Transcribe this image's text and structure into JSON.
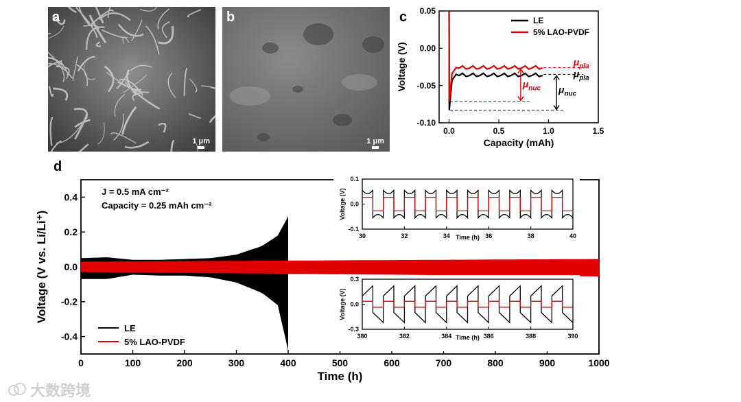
{
  "panels": {
    "a": {
      "label": "a",
      "scale": "1 μm"
    },
    "b": {
      "label": "b",
      "scale": "1 μm"
    },
    "c": {
      "label": "c"
    },
    "d": {
      "label": "d"
    }
  },
  "watermark": {
    "text": "大数跨境",
    "icon": "cloud-logo-icon"
  },
  "colors": {
    "le": "#000000",
    "lao": "#e00000"
  },
  "chart_data": [
    {
      "id": "c",
      "type": "line",
      "xlabel": "Capacity (mAh)",
      "ylabel": "Voltage (V)",
      "xlim": [
        -0.1,
        1.5
      ],
      "ylim": [
        -0.1,
        0.05
      ],
      "xticks": [
        0.0,
        0.5,
        1.0,
        1.5
      ],
      "xtick_labels": [
        "0.0",
        "0.5",
        "1.0",
        "1.5"
      ],
      "yticks": [
        -0.1,
        -0.05,
        0.0,
        0.05
      ],
      "ytick_labels": [
        "-0.10",
        "-0.05",
        "0.00",
        "0.05"
      ],
      "legend": [
        "LE",
        "5% LAO-PVDF"
      ],
      "legend_position": "top-right",
      "series": [
        {
          "name": "LE",
          "nucleation_min": -0.083,
          "plateau": -0.035,
          "x_end": 0.95
        },
        {
          "name": "5% LAO-PVDF",
          "nucleation_min": -0.071,
          "plateau": -0.026,
          "x_end": 0.95
        }
      ],
      "annotations": [
        {
          "main": "μ",
          "sub": "pla",
          "color": "#e00000"
        },
        {
          "main": "μ",
          "sub": "pla",
          "color": "#000000"
        },
        {
          "main": "μ",
          "sub": "nuc",
          "color": "#e00000"
        },
        {
          "main": "μ",
          "sub": "nuc",
          "color": "#000000"
        }
      ]
    },
    {
      "id": "d",
      "type": "line",
      "xlabel": "Time (h)",
      "ylabel": "Voltage (V vs. Li/Li⁺)",
      "xlim": [
        0,
        1000
      ],
      "ylim": [
        -0.5,
        0.5
      ],
      "xticks": [
        0,
        100,
        200,
        300,
        400,
        500,
        600,
        700,
        800,
        900,
        1000
      ],
      "xtick_labels": [
        "0",
        "100",
        "200",
        "300",
        "400",
        "500",
        "600",
        "700",
        "800",
        "900",
        "1000"
      ],
      "yticks": [
        -0.4,
        -0.2,
        0.0,
        0.2,
        0.4
      ],
      "ytick_labels": [
        "-0.4",
        "-0.2",
        "0.0",
        "0.2",
        "0.4"
      ],
      "legend": [
        "LE",
        "5% LAO-PVDF"
      ],
      "legend_position": "bottom-left",
      "annotations": [
        "J = 0.5 mA cm⁻²",
        "Capacity = 0.25 mAh cm⁻²"
      ],
      "series": [
        {
          "name": "LE",
          "x": [
            0,
            50,
            100,
            150,
            200,
            250,
            300,
            350,
            380,
            400
          ],
          "upper": [
            0.05,
            0.055,
            0.04,
            0.04,
            0.045,
            0.05,
            0.07,
            0.12,
            0.18,
            0.29
          ],
          "lower": [
            -0.07,
            -0.07,
            -0.045,
            -0.05,
            -0.05,
            -0.06,
            -0.09,
            -0.15,
            -0.22,
            -0.48
          ]
        },
        {
          "name": "5% LAO-PVDF",
          "x": [
            0,
            1000
          ],
          "upper": [
            0.03,
            0.045
          ],
          "lower": [
            -0.03,
            -0.055
          ]
        }
      ]
    },
    {
      "id": "d-inset-top",
      "type": "line",
      "xlabel": "Time (h)",
      "ylabel": "Voltage (V)",
      "xlim": [
        30,
        40
      ],
      "ylim": [
        -0.1,
        0.1
      ],
      "xticks": [
        30,
        32,
        34,
        36,
        38,
        40
      ],
      "xtick_labels": [
        "30",
        "32",
        "34",
        "36",
        "38",
        "40"
      ],
      "yticks": [
        -0.1,
        0.0,
        0.1
      ],
      "ytick_labels": [
        "-0.1",
        "0.0",
        "0.1"
      ],
      "series": [
        {
          "name": "LE",
          "amplitude": 0.055
        },
        {
          "name": "5% LAO-PVDF",
          "amplitude": 0.027
        }
      ]
    },
    {
      "id": "d-inset-bottom",
      "type": "line",
      "xlabel": "Time (h)",
      "ylabel": "Voltage (V)",
      "xlim": [
        380,
        390
      ],
      "ylim": [
        -0.3,
        0.3
      ],
      "xticks": [
        380,
        382,
        384,
        386,
        388,
        390
      ],
      "xtick_labels": [
        "380",
        "382",
        "384",
        "386",
        "388",
        "390"
      ],
      "yticks": [
        -0.3,
        0.0,
        0.3
      ],
      "ytick_labels": [
        "-0.3",
        "0.0",
        "0.3"
      ],
      "series": [
        {
          "name": "LE",
          "amplitude": 0.22
        },
        {
          "name": "5% LAO-PVDF",
          "amplitude": 0.035
        }
      ]
    }
  ]
}
